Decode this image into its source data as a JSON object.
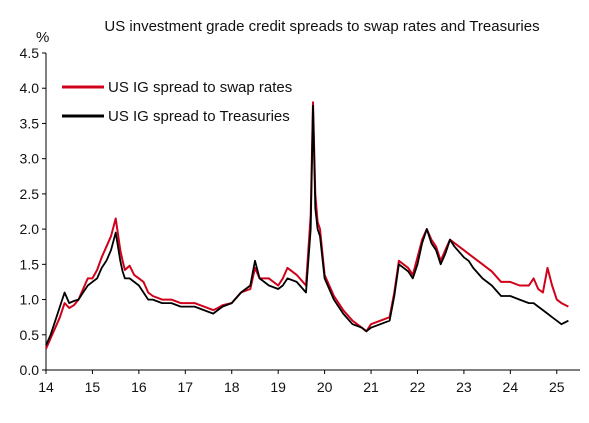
{
  "chart_data": {
    "type": "line",
    "title": "US investment grade credit spreads to swap rates and Treasuries",
    "ylabel": "%",
    "xlabel": "",
    "xlim": [
      2014,
      2025.5
    ],
    "ylim": [
      0,
      4.5
    ],
    "y_ticks": [
      0.0,
      0.5,
      1.0,
      1.5,
      2.0,
      2.5,
      3.0,
      3.5,
      4.0,
      4.5
    ],
    "y_tick_labels": [
      "0.0",
      "0.5",
      "1.0",
      "1.5",
      "2.0",
      "2.5",
      "3.0",
      "3.5",
      "4.0",
      "4.5"
    ],
    "x_ticks": [
      2014,
      2015,
      2016,
      2017,
      2018,
      2019,
      2020,
      2021,
      2022,
      2023,
      2024,
      2025
    ],
    "x_tick_labels": [
      "14",
      "15",
      "16",
      "17",
      "18",
      "19",
      "20",
      "21",
      "22",
      "23",
      "24",
      "25"
    ],
    "grid": false,
    "legend": "top-left",
    "series": [
      {
        "name": "US IG spread to swap rates",
        "color": "#d0021b",
        "x": [
          2014.0,
          2014.1,
          2014.2,
          2014.3,
          2014.4,
          2014.5,
          2014.6,
          2014.7,
          2014.8,
          2014.9,
          2015.0,
          2015.1,
          2015.2,
          2015.3,
          2015.4,
          2015.5,
          2015.6,
          2015.65,
          2015.7,
          2015.8,
          2015.9,
          2016.0,
          2016.1,
          2016.2,
          2016.3,
          2016.5,
          2016.7,
          2016.9,
          2017.0,
          2017.2,
          2017.4,
          2017.6,
          2017.7,
          2017.8,
          2018.0,
          2018.2,
          2018.4,
          2018.5,
          2018.6,
          2018.8,
          2019.0,
          2019.1,
          2019.2,
          2019.4,
          2019.6,
          2019.7,
          2019.75,
          2019.8,
          2019.85,
          2019.9,
          2020.0,
          2020.2,
          2020.4,
          2020.6,
          2020.8,
          2020.9,
          2021.0,
          2021.2,
          2021.4,
          2021.5,
          2021.6,
          2021.8,
          2021.9,
          2022.0,
          2022.1,
          2022.2,
          2022.3,
          2022.4,
          2022.5,
          2022.6,
          2022.7,
          2022.8,
          2023.0,
          2023.1,
          2023.2,
          2023.4,
          2023.6,
          2023.8,
          2024.0,
          2024.2,
          2024.4,
          2024.5,
          2024.6,
          2024.7,
          2024.8,
          2024.9,
          2025.0,
          2025.1,
          2025.25
        ],
        "values": [
          0.3,
          0.45,
          0.6,
          0.75,
          0.95,
          0.88,
          0.92,
          1.0,
          1.15,
          1.3,
          1.3,
          1.42,
          1.6,
          1.75,
          1.9,
          2.15,
          1.7,
          1.55,
          1.42,
          1.48,
          1.35,
          1.3,
          1.25,
          1.1,
          1.05,
          1.0,
          1.0,
          0.95,
          0.95,
          0.95,
          0.9,
          0.85,
          0.88,
          0.92,
          0.95,
          1.1,
          1.15,
          1.45,
          1.3,
          1.3,
          1.2,
          1.3,
          1.45,
          1.35,
          1.2,
          2.2,
          3.8,
          2.5,
          2.1,
          2.0,
          1.35,
          1.05,
          0.85,
          0.7,
          0.6,
          0.55,
          0.65,
          0.7,
          0.75,
          1.1,
          1.55,
          1.45,
          1.35,
          1.6,
          1.85,
          2.0,
          1.85,
          1.75,
          1.55,
          1.7,
          1.85,
          1.8,
          1.7,
          1.65,
          1.6,
          1.5,
          1.4,
          1.25,
          1.25,
          1.2,
          1.2,
          1.3,
          1.15,
          1.1,
          1.45,
          1.2,
          1.0,
          0.95,
          0.9
        ]
      },
      {
        "name": "US IG spread to Treasuries",
        "color": "#000000",
        "x": [
          2014.0,
          2014.1,
          2014.2,
          2014.3,
          2014.4,
          2014.5,
          2014.6,
          2014.7,
          2014.8,
          2014.9,
          2015.0,
          2015.1,
          2015.2,
          2015.3,
          2015.4,
          2015.5,
          2015.6,
          2015.65,
          2015.7,
          2015.8,
          2015.9,
          2016.0,
          2016.1,
          2016.2,
          2016.3,
          2016.5,
          2016.7,
          2016.9,
          2017.0,
          2017.2,
          2017.4,
          2017.6,
          2017.7,
          2017.8,
          2018.0,
          2018.2,
          2018.4,
          2018.5,
          2018.6,
          2018.8,
          2019.0,
          2019.1,
          2019.2,
          2019.4,
          2019.6,
          2019.7,
          2019.75,
          2019.8,
          2019.85,
          2019.9,
          2020.0,
          2020.2,
          2020.4,
          2020.6,
          2020.8,
          2020.9,
          2021.0,
          2021.2,
          2021.4,
          2021.5,
          2021.6,
          2021.8,
          2021.9,
          2022.0,
          2022.1,
          2022.2,
          2022.3,
          2022.4,
          2022.5,
          2022.6,
          2022.7,
          2022.8,
          2023.0,
          2023.1,
          2023.2,
          2023.4,
          2023.6,
          2023.8,
          2024.0,
          2024.2,
          2024.4,
          2024.5,
          2024.6,
          2024.7,
          2024.8,
          2024.9,
          2025.0,
          2025.1,
          2025.25
        ],
        "values": [
          0.35,
          0.5,
          0.7,
          0.9,
          1.1,
          0.95,
          0.98,
          1.0,
          1.1,
          1.2,
          1.25,
          1.3,
          1.45,
          1.55,
          1.7,
          1.95,
          1.55,
          1.4,
          1.3,
          1.3,
          1.25,
          1.2,
          1.1,
          1.0,
          1.0,
          0.95,
          0.95,
          0.9,
          0.9,
          0.9,
          0.85,
          0.8,
          0.85,
          0.9,
          0.95,
          1.1,
          1.2,
          1.55,
          1.3,
          1.2,
          1.15,
          1.2,
          1.3,
          1.25,
          1.1,
          2.0,
          3.75,
          2.3,
          2.0,
          1.9,
          1.3,
          1.0,
          0.8,
          0.65,
          0.6,
          0.55,
          0.6,
          0.65,
          0.7,
          1.05,
          1.5,
          1.4,
          1.3,
          1.5,
          1.8,
          2.0,
          1.8,
          1.7,
          1.5,
          1.65,
          1.85,
          1.75,
          1.6,
          1.55,
          1.45,
          1.3,
          1.2,
          1.05,
          1.05,
          1.0,
          0.95,
          0.95,
          0.9,
          0.85,
          0.8,
          0.75,
          0.7,
          0.65,
          0.7
        ]
      }
    ]
  }
}
